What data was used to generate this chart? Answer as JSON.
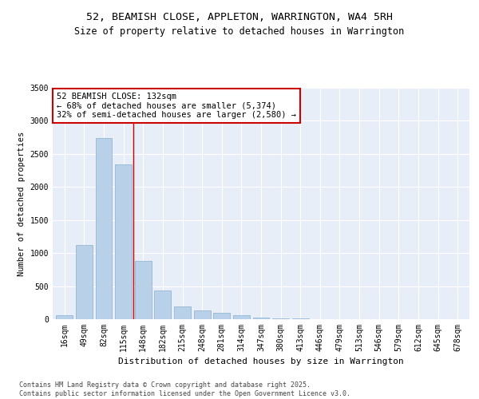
{
  "title": "52, BEAMISH CLOSE, APPLETON, WARRINGTON, WA4 5RH",
  "subtitle": "Size of property relative to detached houses in Warrington",
  "xlabel": "Distribution of detached houses by size in Warrington",
  "ylabel": "Number of detached properties",
  "categories": [
    "16sqm",
    "49sqm",
    "82sqm",
    "115sqm",
    "148sqm",
    "182sqm",
    "215sqm",
    "248sqm",
    "281sqm",
    "314sqm",
    "347sqm",
    "380sqm",
    "413sqm",
    "446sqm",
    "479sqm",
    "513sqm",
    "546sqm",
    "579sqm",
    "612sqm",
    "645sqm",
    "678sqm"
  ],
  "values": [
    55,
    1120,
    2740,
    2340,
    880,
    430,
    190,
    130,
    100,
    55,
    30,
    10,
    10,
    5,
    2,
    1,
    1,
    1,
    0,
    0,
    0
  ],
  "bar_color": "#b8d0e8",
  "bar_edge_color": "#8ab0d0",
  "vline_color": "#cc0000",
  "annotation_title": "52 BEAMISH CLOSE: 132sqm",
  "annotation_line1": "← 68% of detached houses are smaller (5,374)",
  "annotation_line2": "32% of semi-detached houses are larger (2,580) →",
  "annotation_box_color": "#cc0000",
  "ylim": [
    0,
    3500
  ],
  "yticks": [
    0,
    500,
    1000,
    1500,
    2000,
    2500,
    3000,
    3500
  ],
  "background_color": "#e8eef8",
  "footer_line1": "Contains HM Land Registry data © Crown copyright and database right 2025.",
  "footer_line2": "Contains public sector information licensed under the Open Government Licence v3.0.",
  "title_fontsize": 9.5,
  "subtitle_fontsize": 8.5,
  "xlabel_fontsize": 8,
  "ylabel_fontsize": 7.5,
  "tick_fontsize": 7,
  "footer_fontsize": 6,
  "annot_fontsize": 7.5
}
